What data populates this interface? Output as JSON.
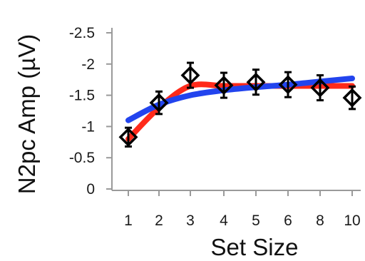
{
  "chart_data": {
    "type": "line",
    "xlabel": "Set Size",
    "ylabel": "N2pc Amp (µV)",
    "categories": [
      "1",
      "2",
      "3",
      "4",
      "5",
      "6",
      "8",
      "10"
    ],
    "ylim": [
      0,
      -2.5
    ],
    "y_axis_inverted": true,
    "yticks": [
      0,
      -0.5,
      -1,
      -1.5,
      -2,
      -2.5
    ],
    "ytick_labels": [
      "0",
      "-0.5",
      "-1",
      "-1.5",
      "-2",
      "-2.5"
    ],
    "grid": false,
    "legend": "none",
    "series": [
      {
        "kind": "points",
        "marker": "open-diamond",
        "color": "#000000",
        "values": [
          -0.83,
          -1.38,
          -1.82,
          -1.66,
          -1.71,
          -1.67,
          -1.62,
          -1.46
        ],
        "error": [
          0.15,
          0.18,
          0.2,
          0.2,
          0.2,
          0.2,
          0.2,
          0.18
        ]
      },
      {
        "kind": "fit",
        "color": "#ff2a1a",
        "values": [
          -0.8,
          -1.3,
          -1.65,
          -1.65,
          -1.65,
          -1.65,
          -1.65,
          -1.65
        ]
      },
      {
        "kind": "fit",
        "color": "#2244ee",
        "values": [
          -1.1,
          -1.35,
          -1.5,
          -1.58,
          -1.63,
          -1.67,
          -1.72,
          -1.77
        ]
      }
    ]
  }
}
